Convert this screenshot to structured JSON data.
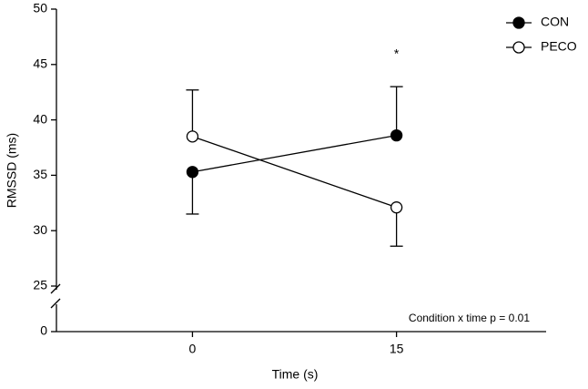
{
  "chart_data": {
    "type": "line",
    "x_label": "Time  (s)",
    "y_label": "RMSSD  (ms)",
    "x": [
      0,
      15
    ],
    "xlim": [
      -10,
      26
    ],
    "xticks": [
      0,
      15
    ],
    "ylim": [
      25,
      50
    ],
    "yticks": [
      0,
      25,
      30,
      35,
      40,
      45,
      50
    ],
    "axis_break": true,
    "legend": "top-right",
    "series": [
      {
        "name": "CON",
        "color": "#000000",
        "marker_fill": "#000000",
        "values": [
          35.3,
          38.6
        ],
        "errors": [
          3.8,
          4.4
        ],
        "error_side": [
          "down",
          "up"
        ]
      },
      {
        "name": "PECO",
        "color": "#000000",
        "marker_fill": "#ffffff",
        "values": [
          38.5,
          32.1
        ],
        "errors": [
          4.2,
          3.5
        ],
        "error_side": [
          "up",
          "down"
        ]
      }
    ],
    "annotations": [
      {
        "text": "*",
        "x": 15,
        "y": 45.9
      },
      {
        "text": "Condition x time p = 0.01"
      }
    ]
  }
}
